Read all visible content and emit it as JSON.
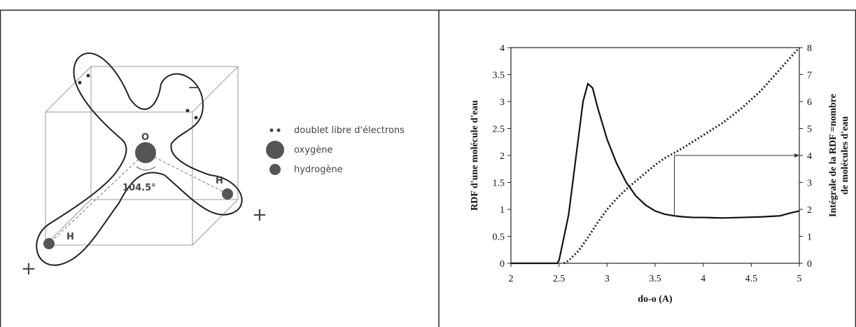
{
  "diagram": {
    "oxygen_label": "O",
    "hydrogen_label_right": "H",
    "hydrogen_label_left": "H",
    "angle": "104.5°",
    "charge_plus_right": "+",
    "charge_plus_left": "+",
    "charge_minus": "−",
    "legend": [
      "doublet libre d'électrons",
      "oxygène",
      "hydrogène"
    ]
  },
  "chart_data": {
    "type": "line",
    "xlabel": "do-o (A)",
    "ylabel": "RDF d'une molécule d'eau",
    "y2label": [
      "Intégrale de la RDF =nombre",
      "de molécules d'eau"
    ],
    "xlim": [
      2,
      5
    ],
    "xticks": [
      2,
      2.5,
      3,
      3.5,
      4,
      4.5,
      5
    ],
    "ylim": [
      0,
      4
    ],
    "yticks": [
      0,
      0.5,
      1,
      1.5,
      2,
      2.5,
      3,
      3.5,
      4
    ],
    "y2lim": [
      0,
      8
    ],
    "y2ticks": [
      0,
      1,
      2,
      3,
      4,
      5,
      6,
      7,
      8
    ],
    "series": [
      {
        "color": "#111",
        "style": "solid",
        "axis": "y",
        "x": [
          2,
          2.48,
          2.5,
          2.6,
          2.7,
          2.75,
          2.8,
          2.85,
          2.9,
          3.0,
          3.1,
          3.2,
          3.3,
          3.4,
          3.5,
          3.6,
          3.7,
          3.8,
          3.9,
          4.0,
          4.2,
          4.4,
          4.6,
          4.8,
          4.9,
          5.0
        ],
        "values": [
          0,
          0,
          0.05,
          0.9,
          2.3,
          3.0,
          3.33,
          3.25,
          2.9,
          2.3,
          1.85,
          1.5,
          1.25,
          1.08,
          0.97,
          0.91,
          0.88,
          0.86,
          0.85,
          0.85,
          0.84,
          0.85,
          0.86,
          0.88,
          0.93,
          0.97
        ]
      },
      {
        "color": "#222",
        "style": "dotted",
        "axis": "y2",
        "x": [
          2.55,
          2.6,
          2.7,
          2.8,
          2.9,
          3.0,
          3.1,
          3.2,
          3.3,
          3.4,
          3.5,
          3.6,
          3.7,
          3.8,
          4.0,
          4.2,
          4.4,
          4.6,
          4.8,
          5.0
        ],
        "values": [
          0,
          0.1,
          0.45,
          0.95,
          1.5,
          2.0,
          2.4,
          2.75,
          3.05,
          3.35,
          3.65,
          3.9,
          4.1,
          4.3,
          4.75,
          5.2,
          5.75,
          6.4,
          7.2,
          8.0
        ]
      },
      {
        "color": "#333",
        "style": "guide",
        "axis": "y",
        "x": [
          3.7,
          3.7,
          5
        ],
        "values": [
          0.9,
          2,
          2
        ]
      }
    ]
  }
}
